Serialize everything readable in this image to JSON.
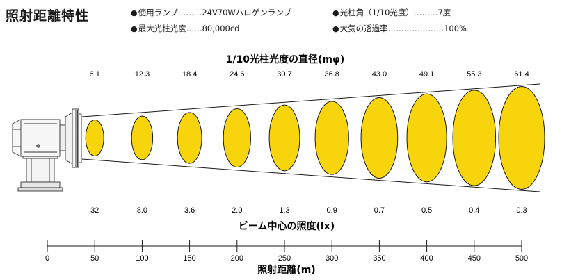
{
  "title": "照射距離特性",
  "specs": [
    {
      "label": "使用ランプ",
      "dots": "………",
      "value": "24V70Wハロゲンランプ"
    },
    {
      "label": "光柱角（1/10光度）",
      "dots": "………",
      "value": "7度"
    },
    {
      "label": "最大光柱光度",
      "dots": "……",
      "value": "80,000cd"
    },
    {
      "label": "大気の透過率",
      "dots": "…………………",
      "value": "100%"
    }
  ],
  "bullet": "●",
  "diameter_header": "1/10光柱光度の直径(mφ)",
  "diameters": [
    "6.1",
    "12.3",
    "18.4",
    "24.6",
    "30.7",
    "36.8",
    "43.0",
    "49.1",
    "55.3",
    "61.4"
  ],
  "illuminance_header": "ビーム中心の照度(lx)",
  "illuminances": [
    "32",
    "8.0",
    "3.6",
    "2.0",
    "1.3",
    "0.9",
    "0.7",
    "0.5",
    "0.4",
    "0.3"
  ],
  "distance_axis": {
    "label": "照射距離(m)",
    "ticks": [
      "0",
      "50",
      "100",
      "150",
      "200",
      "250",
      "300",
      "350",
      "400",
      "450",
      "500"
    ]
  },
  "colors": {
    "beam": "#f7d40c",
    "line": "#1a1a1a"
  }
}
